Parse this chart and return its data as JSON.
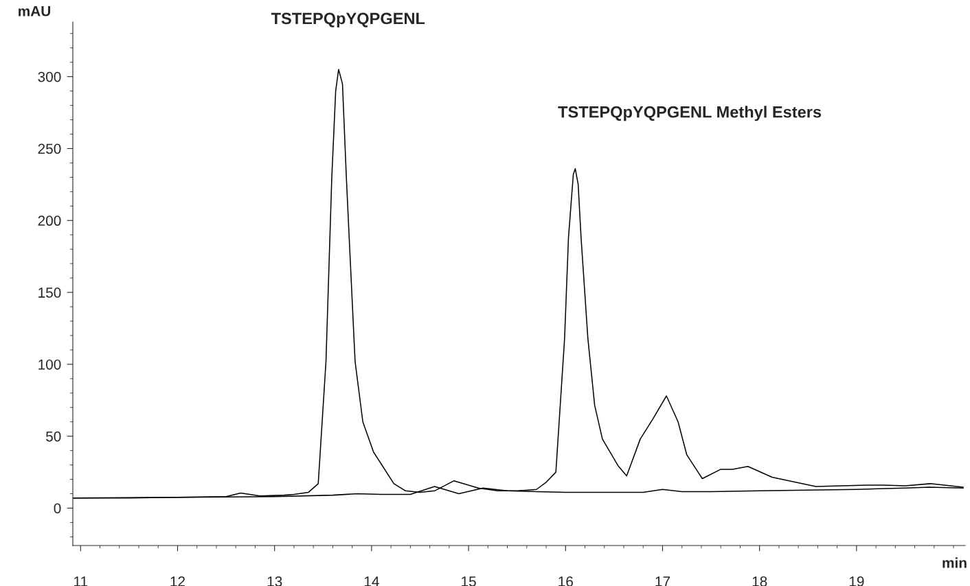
{
  "chart_data": {
    "type": "line",
    "xlabel": "min",
    "ylabel": "mAU",
    "xlim": [
      10.92,
      20.12
    ],
    "ylim": [
      -26,
      338
    ],
    "xticks": [
      11,
      12,
      13,
      14,
      15,
      16,
      17,
      18,
      19
    ],
    "yticks": [
      0,
      50,
      100,
      150,
      200,
      250,
      300
    ],
    "grid": false,
    "legend": false,
    "marker": "none",
    "line_style": "solid",
    "annotations": [
      {
        "text": "TSTEPQpYQPGENL",
        "x": 13.66,
        "y": 305
      },
      {
        "text": "TSTEPQpYQPGENL Methyl Esters",
        "x": 16.1,
        "y": 236
      }
    ],
    "series": [
      {
        "color": "#000000",
        "x": [
          10.92,
          11.5,
          12.0,
          12.5,
          12.65,
          12.85,
          13.1,
          13.2,
          13.35,
          13.45,
          13.53,
          13.59,
          13.63,
          13.66,
          13.7,
          13.74,
          13.77,
          13.83,
          13.91,
          14.02,
          14.23,
          14.35,
          14.5,
          14.65,
          14.85,
          15.1,
          15.3,
          15.5,
          15.7,
          15.8,
          15.9,
          15.99,
          16.03,
          16.08,
          16.1,
          16.13,
          16.16,
          16.23,
          16.3,
          16.38,
          16.54,
          16.63,
          16.77,
          16.9,
          17.04,
          17.16,
          17.25,
          17.41,
          17.6,
          17.72,
          17.88,
          18.13,
          18.58,
          19.11,
          19.28,
          19.5,
          19.76,
          20.1
        ],
        "values": [
          7,
          7,
          7.5,
          8,
          10.5,
          8.5,
          9,
          9.5,
          11,
          17,
          102,
          230,
          290,
          305,
          295,
          230,
          187,
          102,
          60,
          39,
          17,
          12,
          11,
          12,
          19,
          14,
          12,
          12,
          13,
          18,
          25,
          118,
          188,
          232,
          236,
          225,
          188,
          118,
          71.5,
          48,
          29.6,
          22.4,
          48,
          62,
          78,
          60,
          37,
          20.5,
          27,
          27,
          29,
          21.5,
          15,
          16,
          16,
          15.5,
          17,
          14.5
        ]
      },
      {
        "color": "#000000",
        "x": [
          10.92,
          12.0,
          13.0,
          13.6,
          13.85,
          14.1,
          14.4,
          14.65,
          14.9,
          15.15,
          15.4,
          16.0,
          16.8,
          17.0,
          17.2,
          17.5,
          18.0,
          18.5,
          19.0,
          19.5,
          19.75,
          20.1
        ],
        "values": [
          7,
          7.5,
          8,
          9,
          10,
          9.5,
          9.5,
          15,
          10,
          14,
          12,
          11,
          11,
          13,
          11.5,
          11.5,
          12,
          12.5,
          13,
          14,
          14.5,
          14
        ]
      }
    ]
  }
}
